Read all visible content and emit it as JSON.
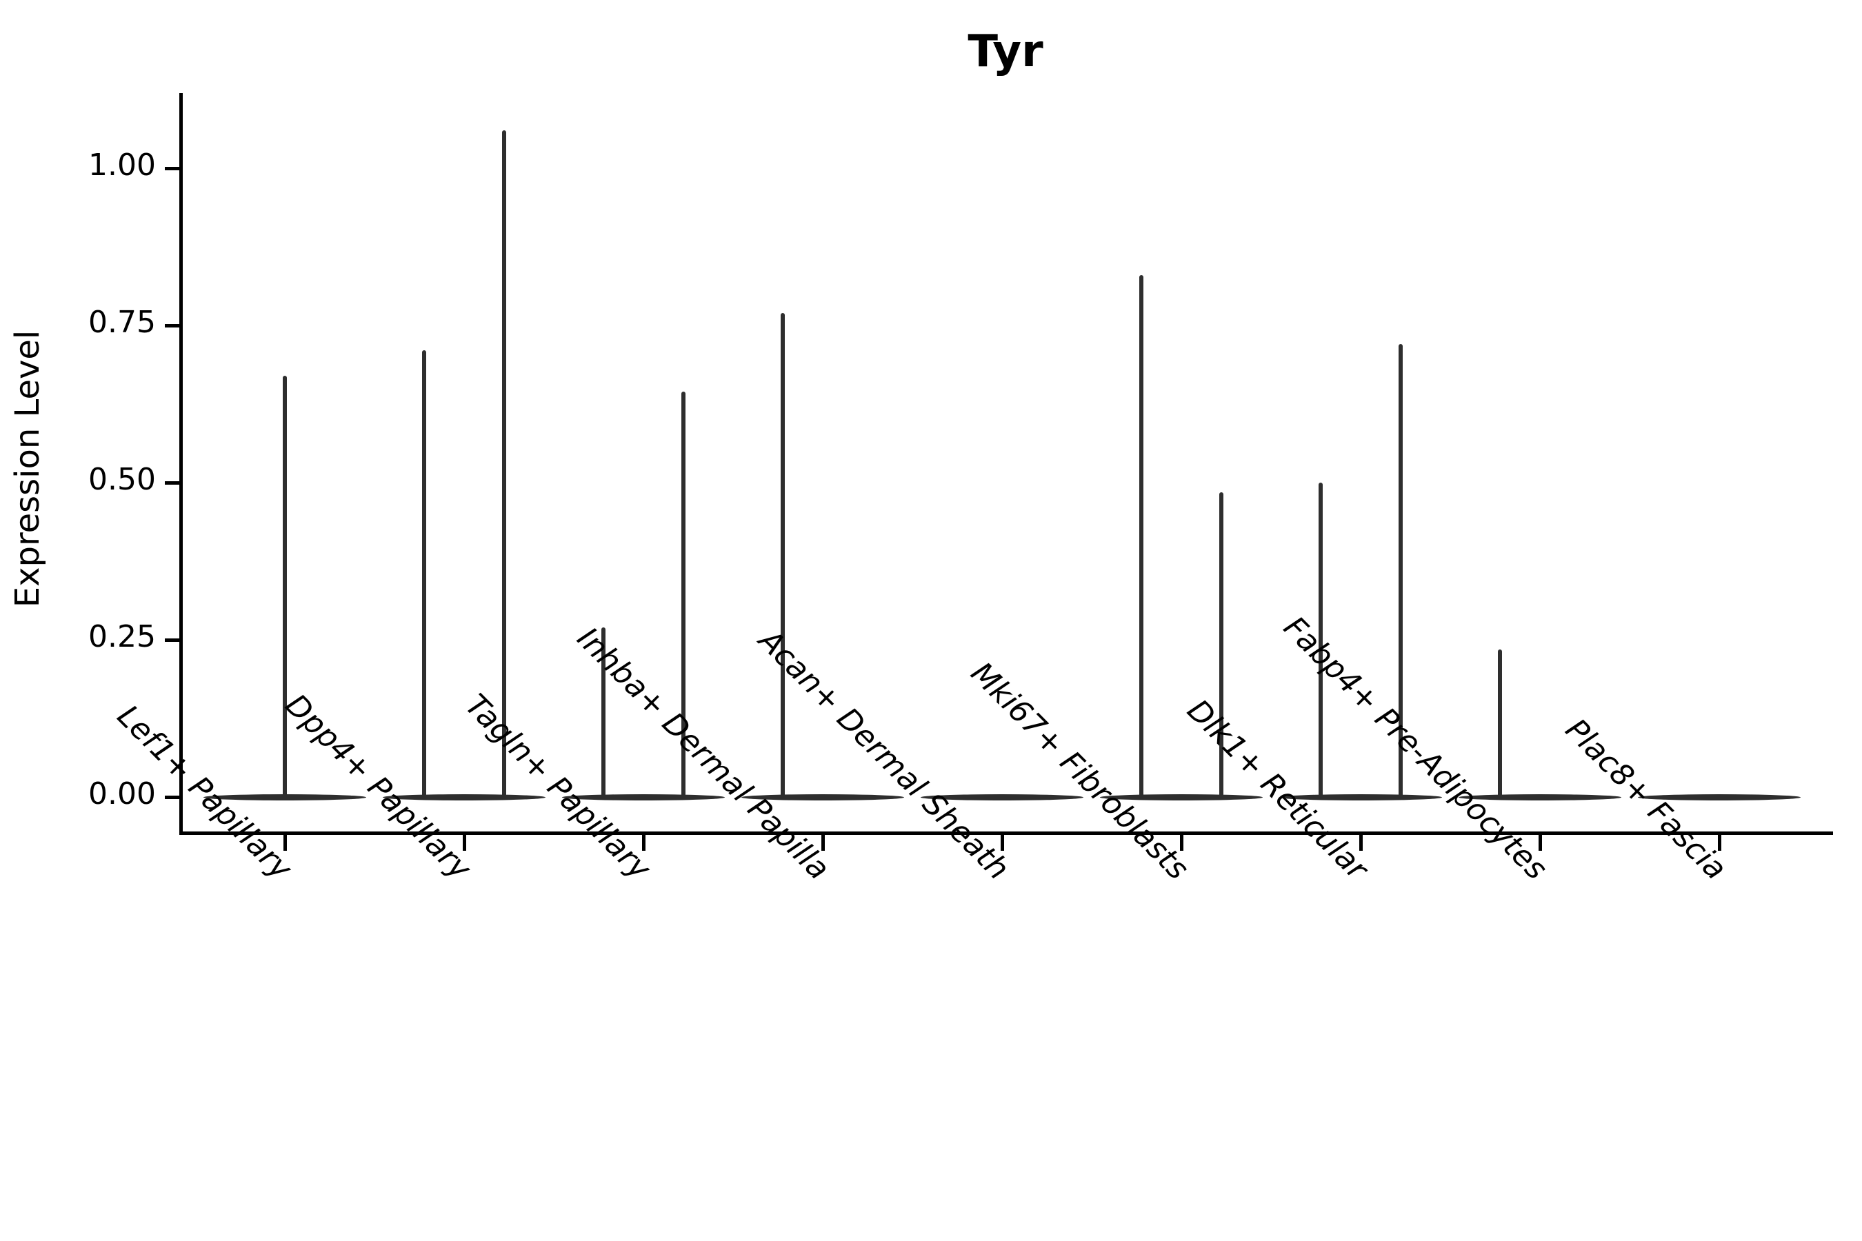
{
  "chart_data": {
    "type": "violin",
    "title": "Tyr",
    "xlabel": "",
    "ylabel": "Expression Level",
    "legend": "none",
    "grid": false,
    "ylim": [
      -0.057,
      1.114
    ],
    "yticks": [
      {
        "label": "0.00",
        "value": 0.0
      },
      {
        "label": "0.25",
        "value": 0.25
      },
      {
        "label": "0.50",
        "value": 0.5
      },
      {
        "label": "0.75",
        "value": 0.75
      },
      {
        "label": "1.00",
        "value": 1.0
      }
    ],
    "categories": [
      "Lef1+ Papillary",
      "Dpp4+ Papillary",
      "Tagln+ Papillary",
      "Inhba+ Dermal Papilla",
      "Acan+ Dermal Sheath",
      "Mki67+ Fibroblasts",
      "Dlk1+ Reticular",
      "Fabp4+ Pre-Adipocytes",
      "Plac8+ Fascia"
    ],
    "groups": [
      {
        "category": "Lef1+ Papillary",
        "baseline_value": 0,
        "spikes": [
          {
            "offset": 0,
            "value": 0.67
          }
        ]
      },
      {
        "category": "Dpp4+ Papillary",
        "baseline_value": 0,
        "spikes": [
          {
            "offset": -0.223,
            "value": 0.71
          },
          {
            "offset": 0.223,
            "value": 1.06
          }
        ]
      },
      {
        "category": "Tagln+ Papillary",
        "baseline_value": 0,
        "spikes": [
          {
            "offset": -0.223,
            "value": 0.27
          },
          {
            "offset": 0.223,
            "value": 0.645
          }
        ]
      },
      {
        "category": "Inhba+ Dermal Papilla",
        "baseline_value": 0,
        "spikes": [
          {
            "offset": -0.223,
            "value": 0.77
          }
        ]
      },
      {
        "category": "Acan+ Dermal Sheath",
        "baseline_value": 0,
        "spikes": []
      },
      {
        "category": "Mki67+ Fibroblasts",
        "baseline_value": 0,
        "spikes": [
          {
            "offset": -0.223,
            "value": 0.83
          },
          {
            "offset": 0.223,
            "value": 0.485
          }
        ]
      },
      {
        "category": "Dlk1+ Reticular",
        "baseline_value": 0,
        "spikes": [
          {
            "offset": -0.223,
            "value": 0.5
          },
          {
            "offset": 0.223,
            "value": 0.72
          }
        ]
      },
      {
        "category": "Fabp4+ Pre-Adipocytes",
        "baseline_value": 0,
        "spikes": [
          {
            "offset": -0.223,
            "value": 0.235
          }
        ]
      },
      {
        "category": "Plac8+ Fascia",
        "baseline_value": 0,
        "spikes": []
      }
    ],
    "colors": {
      "spine": "#000000",
      "violin": "#2e2e2e",
      "text": "#000000",
      "background": "#ffffff"
    }
  }
}
